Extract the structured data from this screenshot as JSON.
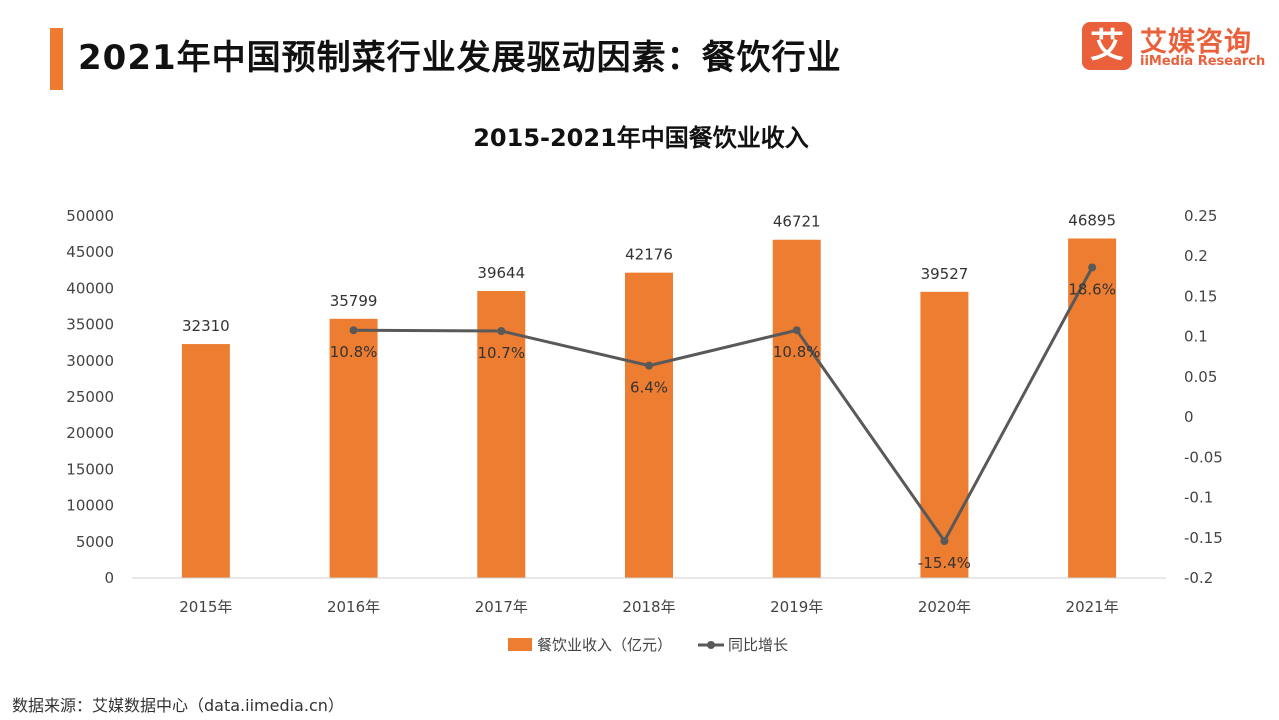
{
  "page": {
    "title": "2021年中国预制菜行业发展驱动因素：餐饮行业",
    "source": "数据来源：艾媒数据中心（data.iimedia.cn）"
  },
  "logo": {
    "mark": "艾",
    "name": "艾媒咨询",
    "sub": "iiMedia Research",
    "icon": "iimedia-logo-icon",
    "color": "#e9603a"
  },
  "colors": {
    "accent": "#ee7b2f",
    "bar": "#ed7d31",
    "line": "#595959"
  },
  "chart_data": {
    "type": "bar",
    "title": "2015-2021年中国餐饮业收入",
    "categories": [
      "2015年",
      "2016年",
      "2017年",
      "2018年",
      "2019年",
      "2020年",
      "2021年"
    ],
    "series": [
      {
        "name": "餐饮业收入（亿元）",
        "type": "bar",
        "axis": "left",
        "values": [
          32310,
          35799,
          39644,
          42176,
          46721,
          39527,
          46895
        ],
        "labels": [
          "32310",
          "35799",
          "39644",
          "42176",
          "46721",
          "39527",
          "46895"
        ]
      },
      {
        "name": "同比增长",
        "type": "line",
        "axis": "right",
        "values": [
          null,
          0.108,
          0.107,
          0.064,
          0.108,
          -0.154,
          0.186
        ],
        "labels": [
          "",
          "10.8%",
          "10.7%",
          "6.4%",
          "10.8%",
          "-15.4%",
          "18.6%"
        ]
      }
    ],
    "ylim": [
      0,
      50000
    ],
    "yticks": [
      "0",
      "5000",
      "10000",
      "15000",
      "20000",
      "25000",
      "30000",
      "35000",
      "40000",
      "45000",
      "50000"
    ],
    "y2lim": [
      -0.2,
      0.25
    ],
    "y2ticks": [
      "-0.2",
      "-0.15",
      "-0.1",
      "-0.05",
      "0",
      "0.05",
      "0.1",
      "0.15",
      "0.2",
      "0.25"
    ],
    "legend": "bottom",
    "grid": false
  }
}
